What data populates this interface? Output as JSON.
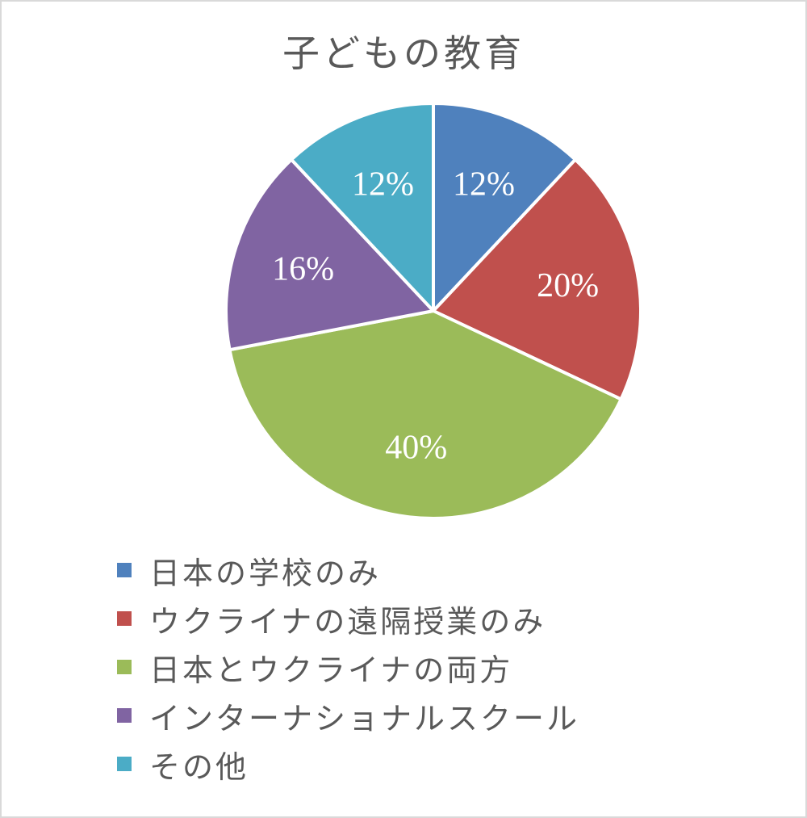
{
  "chart_data": {
    "type": "pie",
    "title": "子どもの教育",
    "categories": [
      "日本の学校のみ",
      "ウクライナの遠隔授業のみ",
      "日本とウクライナの両方",
      "インターナショナルスクール",
      "その他"
    ],
    "values": [
      12,
      20,
      40,
      16,
      12
    ],
    "labels": [
      "12%",
      "20%",
      "40%",
      "16%",
      "12%"
    ],
    "colors": [
      "#4f81bd",
      "#c0504d",
      "#9bbb59",
      "#8064a2",
      "#4bacc6"
    ],
    "start_angle_deg": 0,
    "direction": "clockwise",
    "legend_position": "bottom",
    "data_labels": true
  },
  "title": "子どもの教育",
  "legend": [
    {
      "label": "日本の学校のみ",
      "color": "#4f81bd"
    },
    {
      "label": "ウクライナの遠隔授業のみ",
      "color": "#c0504d"
    },
    {
      "label": "日本とウクライナの両方",
      "color": "#9bbb59"
    },
    {
      "label": "インターナショナルスクール",
      "color": "#8064a2"
    },
    {
      "label": "その他",
      "color": "#4bacc6"
    }
  ]
}
